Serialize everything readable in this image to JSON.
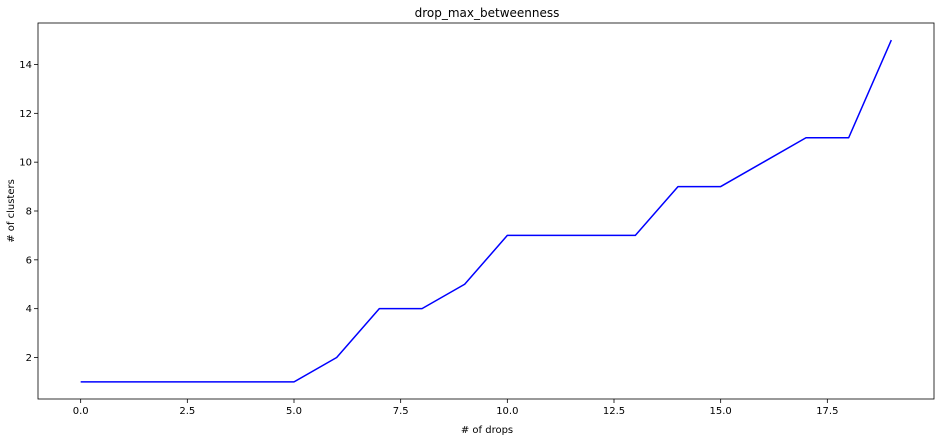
{
  "chart_data": {
    "type": "line",
    "title": "drop_max_betweenness",
    "xlabel": "# of drops",
    "ylabel": "# of clusters",
    "xlim": [
      -1.0,
      20.0
    ],
    "ylim": [
      0.3,
      15.7
    ],
    "grid": false,
    "x_ticks": [
      0.0,
      2.5,
      5.0,
      7.5,
      10.0,
      12.5,
      15.0,
      17.5
    ],
    "x_tick_labels": [
      "0.0",
      "2.5",
      "5.0",
      "7.5",
      "10.0",
      "12.5",
      "15.0",
      "17.5"
    ],
    "y_ticks": [
      2,
      4,
      6,
      8,
      10,
      12,
      14
    ],
    "y_tick_labels": [
      "2",
      "4",
      "6",
      "8",
      "10",
      "12",
      "14"
    ],
    "series": [
      {
        "color": "#0000ff",
        "x": [
          0,
          1,
          2,
          3,
          4,
          5,
          6,
          7,
          8,
          9,
          10,
          11,
          12,
          13,
          14,
          15,
          16,
          17,
          18,
          19
        ],
        "y": [
          1,
          1,
          1,
          1,
          1,
          1,
          2,
          4,
          4,
          5,
          7,
          7,
          7,
          7,
          9,
          9,
          10,
          11,
          11,
          15
        ]
      }
    ]
  }
}
